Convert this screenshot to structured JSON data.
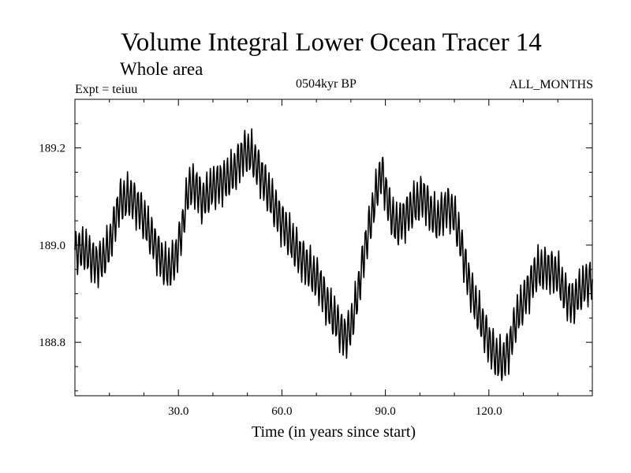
{
  "header": {
    "title": "Volume Integral Lower Ocean Tracer 14",
    "subtitle": "Whole area",
    "experiment": "Expt = teiuu",
    "period": "0504kyr BP",
    "months": "ALL_MONTHS"
  },
  "chart_data": {
    "type": "line",
    "title": "Volume Integral Lower Ocean Tracer 14",
    "subtitle": "Whole area",
    "xlabel": "Time (in years since start)",
    "ylabel": "",
    "xlim": [
      0,
      150
    ],
    "ylim": [
      188.69,
      189.3
    ],
    "xticks": [
      30,
      60,
      90,
      120
    ],
    "xtick_labels": [
      "30.0",
      "60.0",
      "90.0",
      "120.0"
    ],
    "yticks": [
      188.8,
      189.0,
      189.2
    ],
    "ytick_labels": [
      "188.8",
      "189.0",
      "189.2"
    ],
    "series": [
      {
        "name": "Volume integral",
        "oscillation_amplitude": 0.04,
        "oscillation_period_years": 1,
        "trend": {
          "x": [
            0,
            3,
            6,
            8,
            10,
            13,
            16,
            19,
            22,
            25,
            27,
            29,
            31,
            33,
            35,
            37,
            40,
            43,
            46,
            49,
            51,
            53,
            56,
            59,
            62,
            65,
            68,
            71,
            73,
            76,
            78,
            80,
            82,
            84,
            86,
            88,
            89,
            91,
            93,
            95,
            98,
            101,
            103,
            105,
            108,
            110,
            112,
            114,
            116,
            118,
            120,
            122,
            124,
            126,
            128,
            131,
            134,
            137,
            140,
            142,
            144,
            146,
            148,
            150
          ],
          "y": [
            188.99,
            188.99,
            188.96,
            188.97,
            189.0,
            189.09,
            189.1,
            189.07,
            189.02,
            188.97,
            188.95,
            188.97,
            189.03,
            189.12,
            189.12,
            189.09,
            189.12,
            189.13,
            189.15,
            189.19,
            189.19,
            189.16,
            189.11,
            189.06,
            189.02,
            188.98,
            188.95,
            188.92,
            188.88,
            188.84,
            188.81,
            188.83,
            188.9,
            188.99,
            189.06,
            189.13,
            189.15,
            189.08,
            189.04,
            189.05,
            189.08,
            189.1,
            189.07,
            189.05,
            189.08,
            189.06,
            189.0,
            188.93,
            188.88,
            188.84,
            188.8,
            188.77,
            188.76,
            188.79,
            188.85,
            188.9,
            188.95,
            188.95,
            188.94,
            188.9,
            188.88,
            188.9,
            188.92,
            188.93
          ]
        }
      }
    ]
  }
}
